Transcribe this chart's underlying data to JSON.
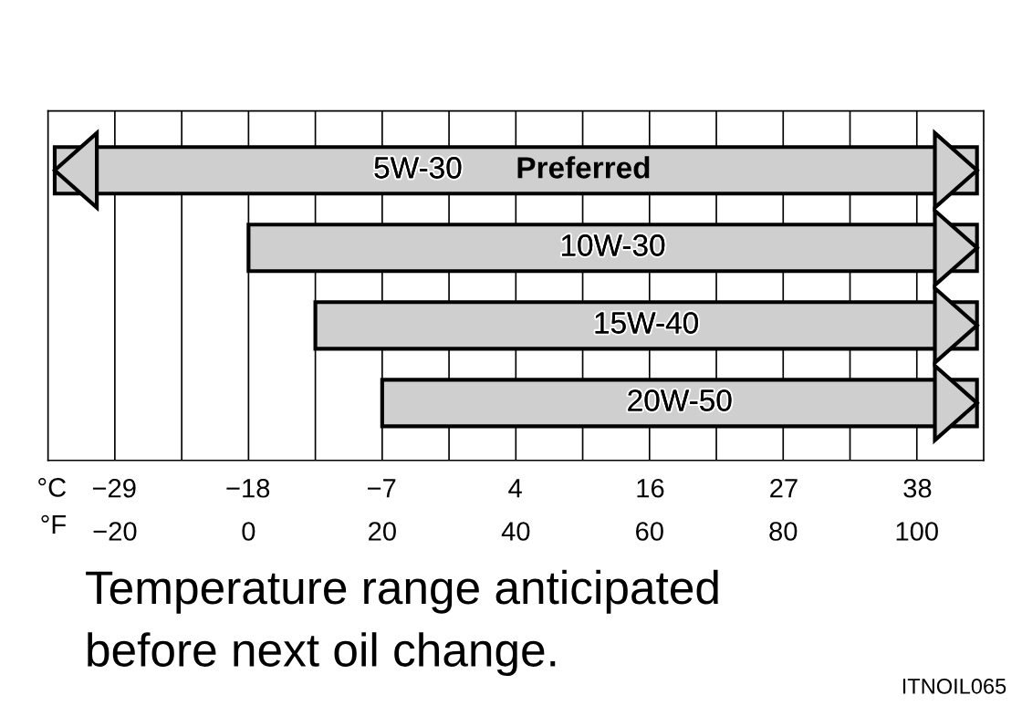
{
  "chart_data": {
    "type": "bar",
    "orientation": "horizontal",
    "categories": [
      "5W-30",
      "10W-30",
      "15W-40",
      "20W-50"
    ],
    "base": [
      -29,
      0,
      10,
      20
    ],
    "values": [
      138,
      109,
      99,
      89
    ],
    "color": "#cfcfcf",
    "xlim": [
      -30,
      110
    ],
    "xticks": [
      {
        "value": -20,
        "label": "−20"
      },
      {
        "value": -10,
        "label": null
      },
      0,
      {
        "value": 10,
        "label": null
      },
      20,
      {
        "value": 30,
        "label": null
      },
      40,
      {
        "value": 50,
        "label": null
      },
      60,
      {
        "value": 70,
        "label": null
      },
      80,
      {
        "value": 90,
        "label": null
      },
      100
    ],
    "xlabel": "°F",
    "x2lim": [
      -34.4,
      43.3
    ],
    "x2ticks": [
      {
        "value": -28.9,
        "label": "−29"
      },
      {
        "value": -17.8,
        "label": "−18"
      },
      {
        "value": -6.7,
        "label": "−7"
      },
      {
        "value": 4.4,
        "label": "4"
      },
      {
        "value": 15.6,
        "label": "16"
      },
      {
        "value": 26.7,
        "label": "27"
      },
      {
        "value": 37.8,
        "label": "38"
      }
    ],
    "x2label": "°C",
    "grid": "x",
    "tick_labels": "x",
    "annotations": [
      "Preferred",
      "Temperature range anticipated\nbefore next oil change.",
      "ITNOIL065"
    ]
  }
}
